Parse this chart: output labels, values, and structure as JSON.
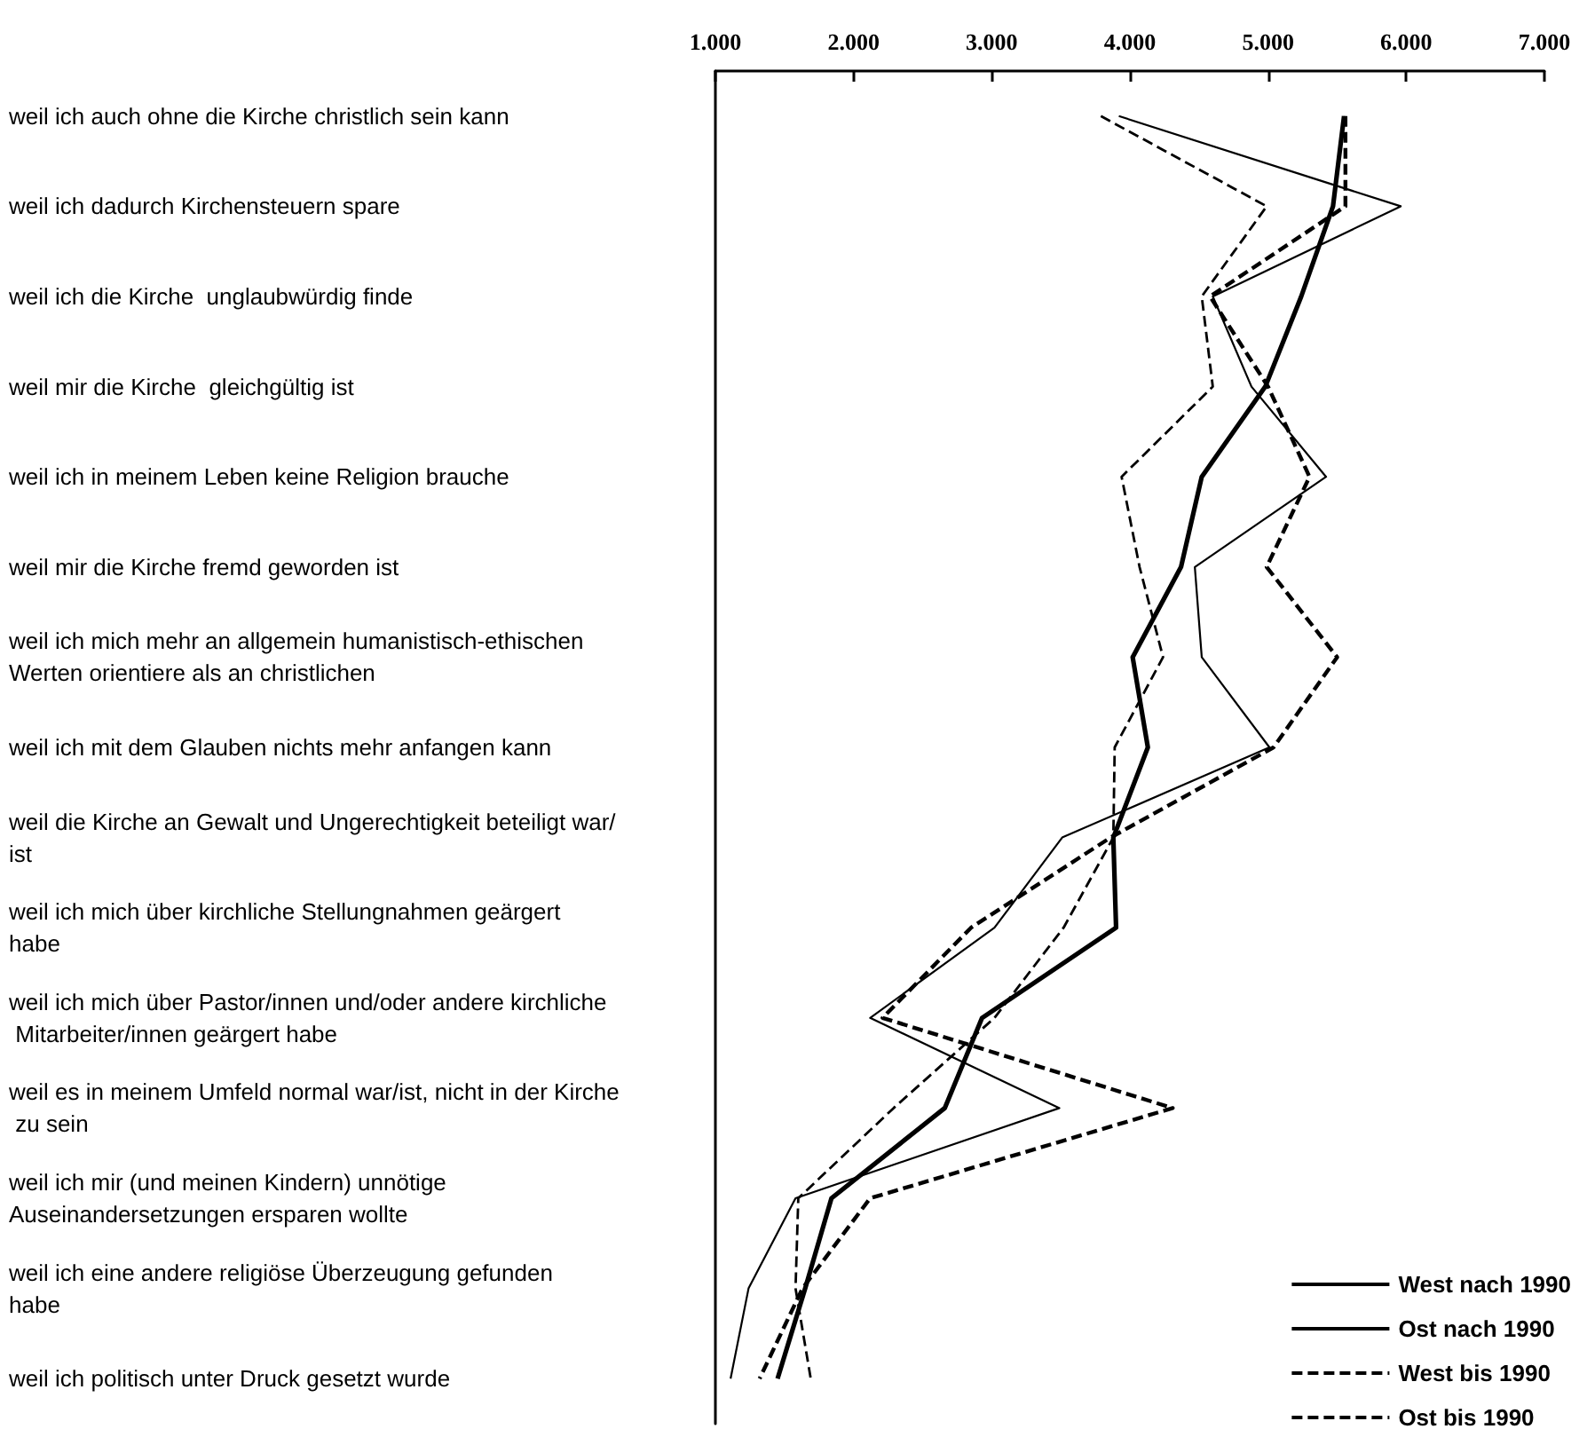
{
  "chart_data": {
    "type": "line",
    "orientation": "horizontal",
    "categories": [
      "weil ich auch ohne die Kirche christlich sein kann",
      "weil ich dadurch Kirchensteuern spare",
      "weil ich die Kirche  unglaubwürdig finde",
      "weil mir die Kirche  gleichgültig ist",
      "weil ich in meinem Leben keine Religion brauche",
      "weil mir die Kirche fremd geworden ist",
      "weil ich mich mehr an allgemein humanistisch-ethischen Werten orientiere als an christlichen",
      "weil ich mit dem Glauben nichts mehr anfangen kann",
      "weil die Kirche an Gewalt und Ungerechtigkeit beteiligt war/ist",
      "weil ich mich über kirchliche Stellungnahmen geärgert habe",
      "weil ich mich über Pastor/innen und/oder andere kirchliche Mitarbeiter/innen geärgert habe",
      "weil es in meinem Umfeld normal war/ist, nicht in der Kirche zu sein",
      "weil ich mir (und meinen Kindern) unnötige Auseinandersetzungen ersparen wollte",
      "weil ich eine andere religiöse Überzeugung gefunden habe",
      "weil ich politisch unter Druck gesetzt wurde"
    ],
    "series": [
      {
        "name": "West nach 1990",
        "color": "#000000",
        "line_style": "solid",
        "values": [
          5.55,
          5.47,
          5.24,
          4.98,
          4.52,
          4.37,
          4.02,
          4.13,
          3.88,
          3.9,
          2.93,
          2.66,
          1.84,
          1.65,
          1.45
        ]
      },
      {
        "name": "Ost nach 1990",
        "color": "#000000",
        "line_style": "solid",
        "values": [
          3.92,
          5.96,
          4.6,
          4.88,
          5.42,
          4.47,
          4.52,
          5.01,
          3.51,
          3.02,
          2.12,
          3.49,
          1.58,
          1.24,
          1.11
        ]
      },
      {
        "name": "West bis 1990",
        "color": "#000000",
        "line_style": "dashed",
        "values": [
          5.56,
          5.56,
          4.58,
          5.0,
          5.3,
          4.99,
          5.5,
          5.04,
          3.86,
          2.85,
          2.21,
          4.31,
          2.12,
          1.63,
          1.32
        ]
      },
      {
        "name": "Ost bis 1990",
        "color": "#000000",
        "line_style": "dashed",
        "values": [
          3.79,
          4.99,
          4.52,
          4.6,
          3.94,
          4.07,
          4.24,
          3.89,
          3.88,
          3.52,
          3.02,
          2.29,
          1.6,
          1.58,
          1.69
        ]
      }
    ],
    "xlim": [
      1,
      7
    ],
    "xticks": [
      {
        "value": 1,
        "label": "1.000"
      },
      {
        "value": 2,
        "label": "2.000"
      },
      {
        "value": 3,
        "label": "3.000"
      },
      {
        "value": 4,
        "label": "4.000"
      },
      {
        "value": 5,
        "label": "5.000"
      },
      {
        "value": 6,
        "label": "6.000"
      },
      {
        "value": 7,
        "label": "7.000"
      }
    ],
    "grid": false,
    "legend": "bottom right",
    "marker": "none"
  }
}
